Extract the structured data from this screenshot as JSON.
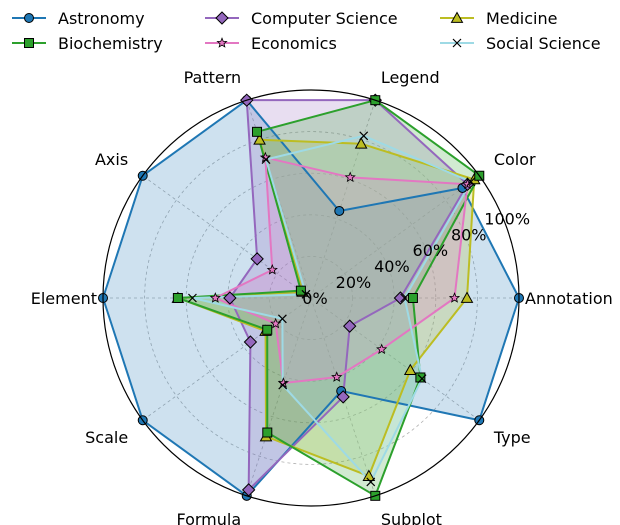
{
  "chart_data": {
    "type": "radar",
    "categories": [
      "Annotation",
      "Color",
      "Legend",
      "Pattern",
      "Axis",
      "Element",
      "Scale",
      "Formula",
      "Subplot",
      "Type"
    ],
    "radial_ticks": [
      "0%",
      "20%",
      "40%",
      "60%",
      "80%",
      "100%"
    ],
    "rlim": [
      0,
      100
    ],
    "grid": true,
    "legend_position": "top",
    "series": [
      {
        "name": "Astronomy",
        "color": "#1f77b4",
        "marker": "circle",
        "fill": true,
        "values": [
          100,
          90,
          44,
          100,
          100,
          100,
          100,
          100,
          47,
          100
        ]
      },
      {
        "name": "Computer Science",
        "color": "#9467bd",
        "marker": "diamond",
        "fill": true,
        "values": [
          43,
          93,
          100,
          100,
          32,
          39,
          36,
          97,
          50,
          23
        ]
      },
      {
        "name": "Medicine",
        "color": "#bcbd22",
        "marker": "triangle",
        "fill": true,
        "values": [
          75,
          97,
          78,
          80,
          5,
          64,
          27,
          70,
          90,
          59
        ]
      },
      {
        "name": "Biochemistry",
        "color": "#2ca02c",
        "marker": "square",
        "fill": true,
        "values": [
          49,
          100,
          100,
          84,
          6,
          64,
          26,
          68,
          100,
          65
        ]
      },
      {
        "name": "Economics",
        "color": "#e377c2",
        "marker": "star",
        "fill": true,
        "values": [
          69,
          93,
          61,
          71,
          23,
          46,
          21,
          43,
          40,
          42
        ]
      },
      {
        "name": "Social Science",
        "color": "#9edae5",
        "marker": "x",
        "fill": true,
        "values": [
          45,
          95,
          82,
          70,
          3,
          57,
          17,
          44,
          93,
          66
        ]
      }
    ]
  }
}
